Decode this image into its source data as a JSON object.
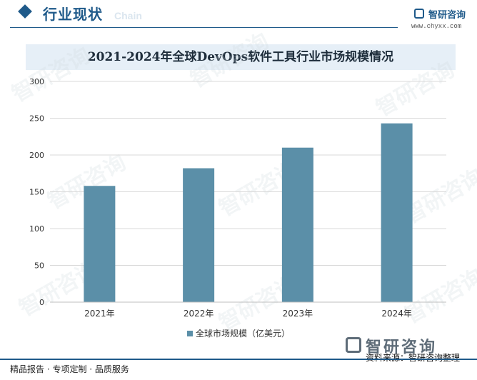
{
  "header": {
    "section_title": "行业现状",
    "section_subtitle": "Chain",
    "logo_name": "智研咨询",
    "logo_url": "www.chyxx.com"
  },
  "watermark_text": "智研咨询",
  "chart_data": {
    "type": "bar",
    "title": "2021-2024年全球DevOps软件工具行业市场规模情况",
    "categories": [
      "2021年",
      "2022年",
      "2023年",
      "2024年"
    ],
    "series": [
      {
        "name": "全球市场规模（亿美元）",
        "values": [
          158,
          182,
          210,
          243
        ]
      }
    ],
    "ylim": [
      0,
      300
    ],
    "yticks": [
      0,
      50,
      100,
      150,
      200,
      250,
      300
    ],
    "grid": true,
    "legend": "bottom",
    "bar_color": "#5b8fa8"
  },
  "footer": {
    "left_text": "精品报告 · 专项定制 · 品质服务",
    "logo_name": "智研咨询",
    "source": "资料来源：智研咨询整理"
  }
}
